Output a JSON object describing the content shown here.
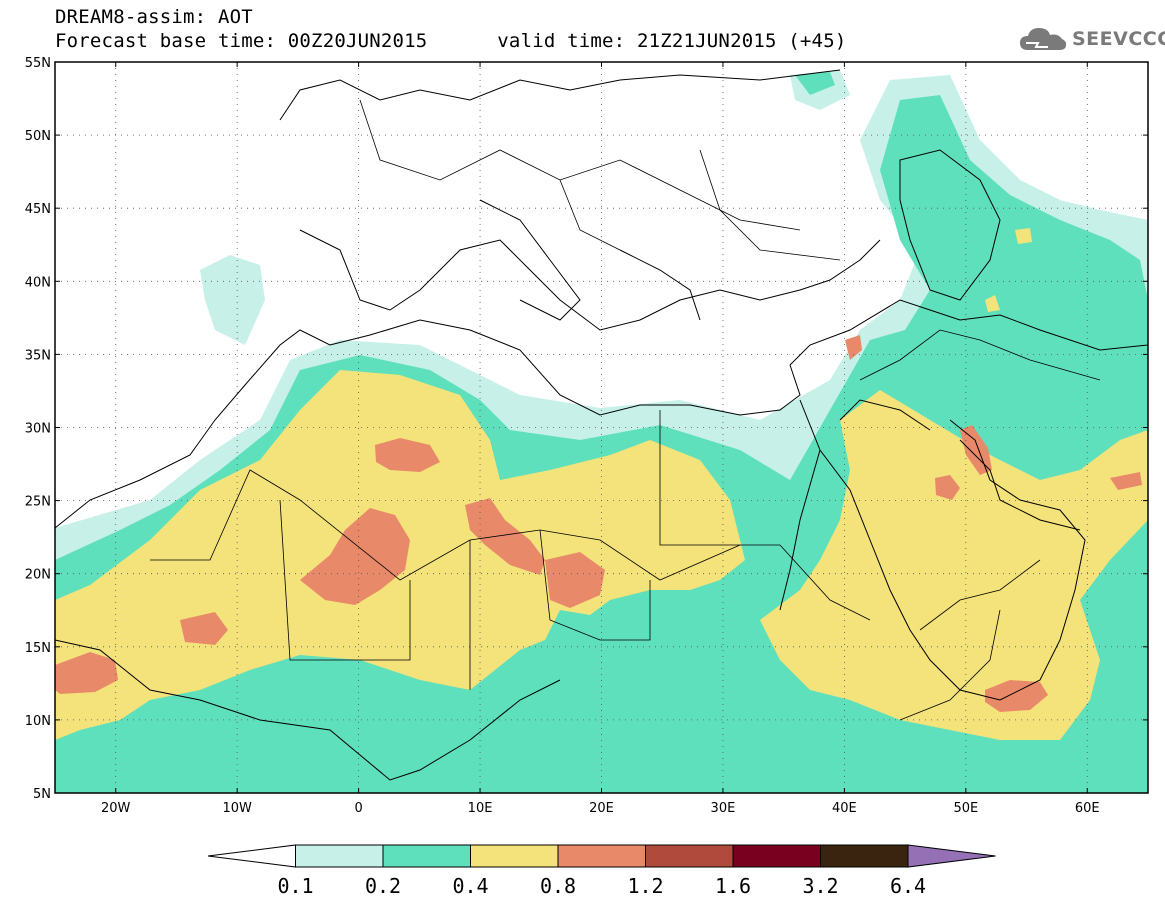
{
  "header": {
    "line1": "DREAM8-assim: AOT",
    "base_label": "Forecast base time: 00Z20JUN2015",
    "valid_label": "valid time: 21Z21JUN2015 (+45)"
  },
  "logo": {
    "text": "SEEVCCC",
    "icon": "cloud-icon"
  },
  "map": {
    "lon_range": [
      -25,
      65
    ],
    "lat_range": [
      5,
      55
    ],
    "lat_labels": [
      "55N",
      "50N",
      "45N",
      "40N",
      "35N",
      "30N",
      "25N",
      "20N",
      "15N",
      "10N",
      "5N"
    ],
    "lon_labels": [
      "20W",
      "10W",
      "0",
      "10E",
      "20E",
      "30E",
      "40E",
      "50E",
      "60E"
    ]
  },
  "colorbar": {
    "labels": [
      "0.1",
      "0.2",
      "0.4",
      "0.8",
      "1.2",
      "1.6",
      "3.2",
      "6.4"
    ],
    "colors": [
      "#ffffff",
      "#c6f0e8",
      "#5fe0bc",
      "#f4e27a",
      "#e88a6a",
      "#b04a3c",
      "#7a0020",
      "#3a2410",
      "#9670b4"
    ]
  },
  "legend_colors": {
    "very_light": "#c6f0e8",
    "light": "#5fe0bc",
    "medium": "#f4e27a",
    "high": "#e88a6a",
    "very_high": "#b04a3c"
  }
}
